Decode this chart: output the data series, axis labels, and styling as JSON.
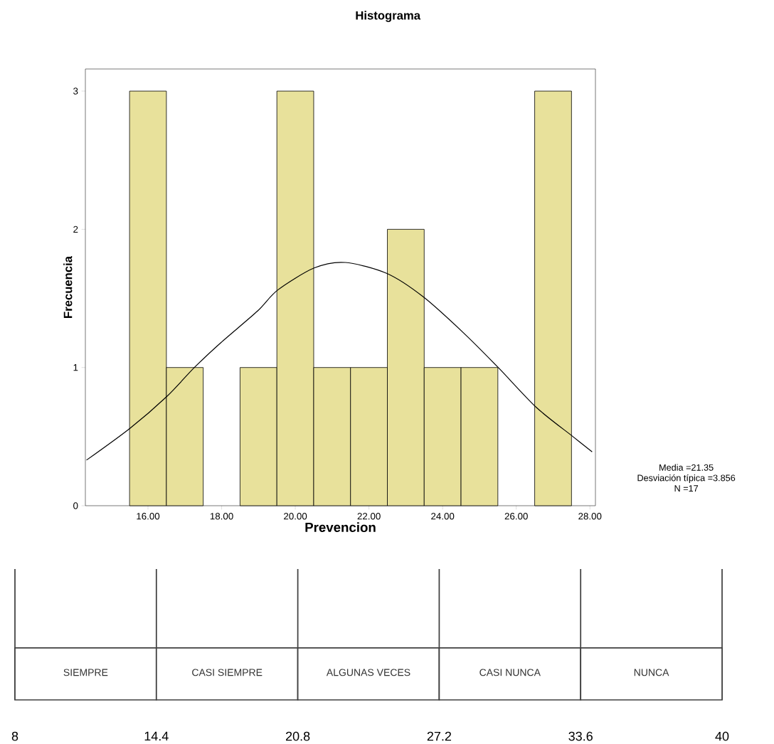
{
  "chart_data": [
    {
      "type": "histogram",
      "title": "Histograma",
      "xlabel": "Prevencion",
      "ylabel": "Frecuencia",
      "bins": [
        15.5,
        16.5,
        17.5,
        18.5,
        19.5,
        20.5,
        21.5,
        22.5,
        23.5,
        24.5,
        25.5,
        26.5,
        27.5
      ],
      "values": [
        3,
        1,
        0,
        1,
        3,
        1,
        1,
        2,
        1,
        1,
        0,
        3
      ],
      "color": "#e8e19b",
      "series": [
        {
          "type": "line",
          "color": "#000000",
          "x": [
            14.33,
            15.51,
            16.51,
            17.26,
            17.98,
            18.98,
            19.52,
            20.51,
            21.36,
            22.49,
            23.48,
            24.57,
            25.51,
            26.55,
            27.54,
            28.06
          ],
          "values": [
            0.33,
            0.56,
            0.79,
            1.0,
            1.18,
            1.41,
            1.56,
            1.72,
            1.76,
            1.68,
            1.51,
            1.25,
            1.0,
            0.71,
            0.5,
            0.39
          ]
        }
      ],
      "xlim": [
        14.3,
        28.15
      ],
      "ylim": [
        0,
        3.16
      ],
      "xticks": [
        {
          "value": 16,
          "label": "16.00"
        },
        {
          "value": 18,
          "label": "18.00"
        },
        {
          "value": 20,
          "label": "20.00"
        },
        {
          "value": 22,
          "label": "22.00"
        },
        {
          "value": 24,
          "label": "24.00"
        },
        {
          "value": 26,
          "label": "26.00"
        },
        {
          "value": 28,
          "label": "28.00"
        }
      ],
      "yticks": [
        0,
        1,
        2,
        3
      ],
      "annotations": [
        "Media =21.35",
        "Desviación típica =3.856",
        "N =17"
      ]
    },
    {
      "type": "bar",
      "orientation": "horizontal",
      "grid": "x",
      "categories": [
        null
      ],
      "xlim": [
        8,
        40
      ],
      "xticks": [
        8,
        14.4,
        20.8,
        27.2,
        33.6,
        40
      ],
      "series": [
        {
          "name": "SIEMPRE",
          "color": "#404040",
          "base": [
            8
          ],
          "values": [
            6.4
          ]
        },
        {
          "name": "CASI SIEMPRE",
          "color": "#404040",
          "base": [
            14.4
          ],
          "values": [
            6.4
          ]
        },
        {
          "name": "ALGUNAS VECES",
          "color": "#404040",
          "base": [
            20.8
          ],
          "values": [
            6.4
          ]
        },
        {
          "name": "CASI NUNCA",
          "color": "#404040",
          "base": [
            27.2
          ],
          "values": [
            6.4
          ]
        },
        {
          "name": "NUNCA",
          "color": "#404040",
          "base": [
            33.6
          ],
          "values": [
            6.4
          ]
        }
      ]
    }
  ]
}
